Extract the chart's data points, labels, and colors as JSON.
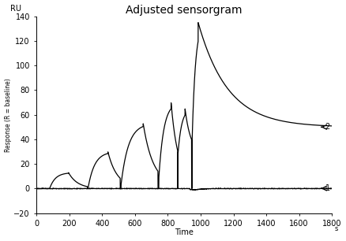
{
  "title": "Adjusted sensorgram",
  "xlabel": "Time",
  "ylabel": "Response (R = baseline)",
  "ru_label": "RU",
  "xlim": [
    0,
    1800
  ],
  "ylim": [
    -20,
    140
  ],
  "xticks": [
    0,
    200,
    400,
    600,
    800,
    1000,
    1200,
    1400,
    1600,
    1800
  ],
  "yticks": [
    -20,
    0,
    20,
    40,
    60,
    80,
    100,
    120,
    140
  ],
  "line1_color": "#000000",
  "line2_color": "#000000",
  "background_color": "#ffffff",
  "title_fontsize": 10,
  "axis_fontsize": 7,
  "tick_fontsize": 7,
  "cycles": [
    {
      "t_inj_s": 80,
      "t_inj_e": 195,
      "t_dis_e": 310,
      "peak": 13,
      "base": 0,
      "tau_a": 35,
      "tau_d": 55
    },
    {
      "t_inj_s": 315,
      "t_inj_e": 435,
      "t_dis_e": 510,
      "peak": 30,
      "base": 1,
      "tau_a": 40,
      "tau_d": 55
    },
    {
      "t_inj_s": 515,
      "t_inj_e": 650,
      "t_dis_e": 740,
      "peak": 53,
      "base": 3,
      "tau_a": 45,
      "tau_d": 60
    },
    {
      "t_inj_s": 745,
      "t_inj_e": 820,
      "t_dis_e": 860,
      "peak": 70,
      "base": 8,
      "tau_a": 30,
      "tau_d": 40
    },
    {
      "t_inj_s": 862,
      "t_inj_e": 905,
      "t_dis_e": 945,
      "peak": 65,
      "base": 28,
      "tau_a": 22,
      "tau_d": 35
    },
    {
      "t_inj_s": 948,
      "t_inj_e": 985,
      "t_dis_e": 1800,
      "peak": 135,
      "base": 38,
      "tau_a": 20,
      "tau_d": 180,
      "plateau": 50
    }
  ]
}
